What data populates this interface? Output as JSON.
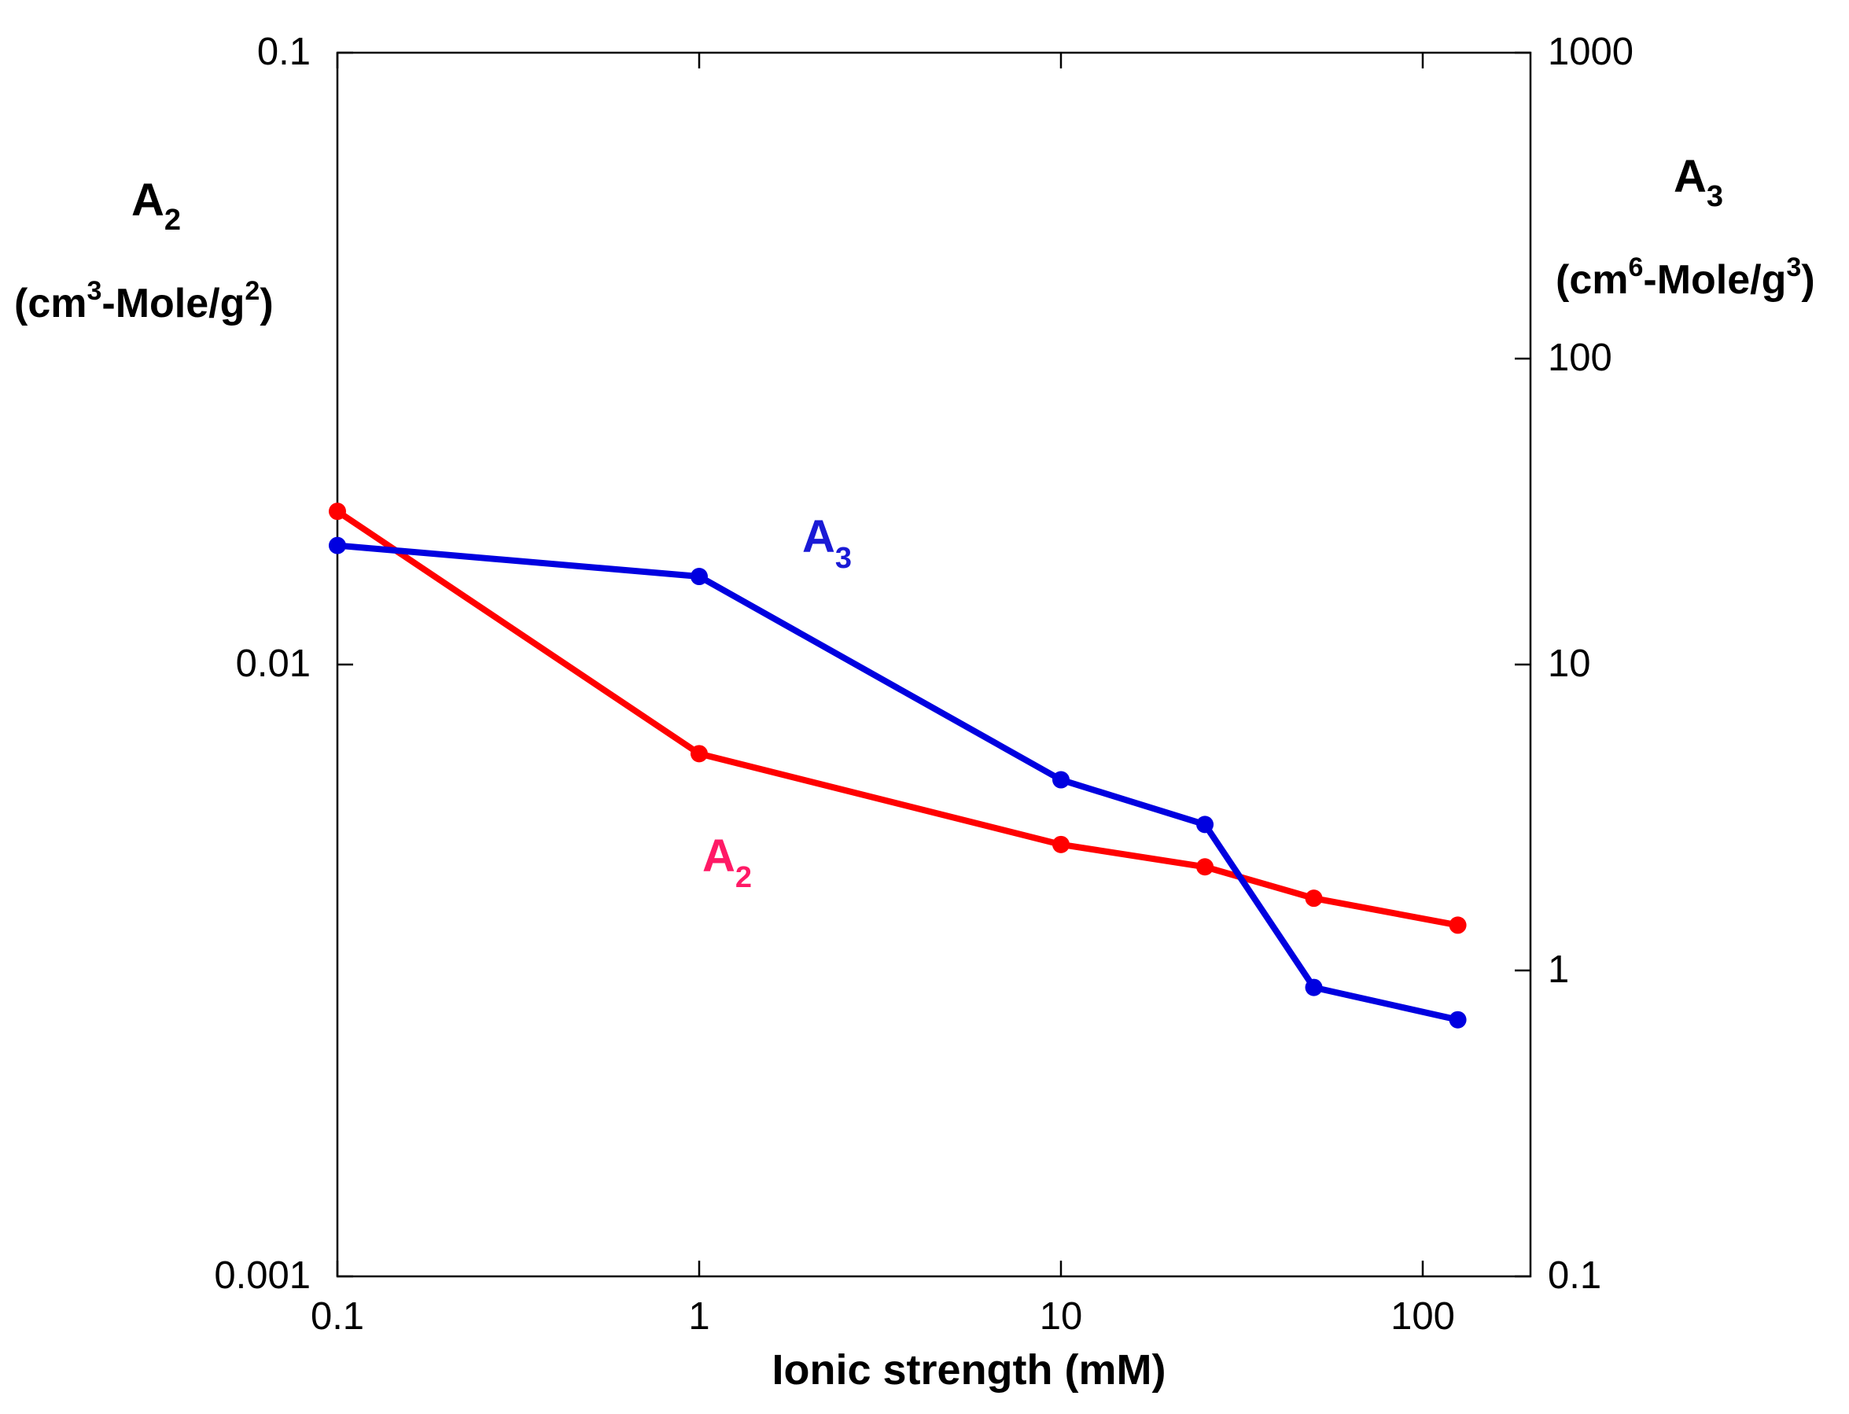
{
  "chart_data": {
    "type": "line",
    "title": "",
    "xlabel": "Ionic strength (mM)",
    "x_scale": "log",
    "xlim": [
      0.1,
      200
    ],
    "x_ticks": [
      0.1,
      1,
      10,
      100
    ],
    "x_tick_labels": [
      "0.1",
      "1",
      "10",
      "100"
    ],
    "y_left": {
      "label_main": "A",
      "label_sub": "2",
      "unit_text": [
        "(cm",
        "3",
        "-Mole/g",
        "2",
        ")"
      ],
      "scale": "log",
      "lim": [
        0.001,
        0.1
      ],
      "ticks": [
        0.001,
        0.01,
        0.1
      ],
      "tick_labels": [
        "0.001",
        "0.01",
        "0.1"
      ]
    },
    "y_right": {
      "label_main": "A",
      "label_sub": "3",
      "unit_text": [
        "(cm",
        "6",
        "-Mole/g",
        "3",
        ")"
      ],
      "scale": "log",
      "lim": [
        0.1,
        1000
      ],
      "ticks": [
        0.1,
        1,
        10,
        100,
        1000
      ],
      "tick_labels": [
        "0.1",
        "1",
        "10",
        "100",
        "1000"
      ]
    },
    "series": [
      {
        "name": "A2",
        "label_main": "A",
        "label_sub": "2",
        "axis": "left",
        "color": "#ff0000",
        "label_color": "#ff1a66",
        "x": [
          0.1,
          1,
          10,
          25,
          50,
          125
        ],
        "values": [
          0.0178,
          0.00715,
          0.00508,
          0.00467,
          0.00415,
          0.00375
        ]
      },
      {
        "name": "A3",
        "label_main": "A",
        "label_sub": "3",
        "axis": "right",
        "color": "#0000e0",
        "label_color": "#1a1ad6",
        "x": [
          0.1,
          1,
          10,
          25,
          50,
          125
        ],
        "values": [
          24.5,
          19.4,
          4.2,
          3.0,
          0.88,
          0.69
        ]
      }
    ],
    "grid": false,
    "legend": "none"
  }
}
